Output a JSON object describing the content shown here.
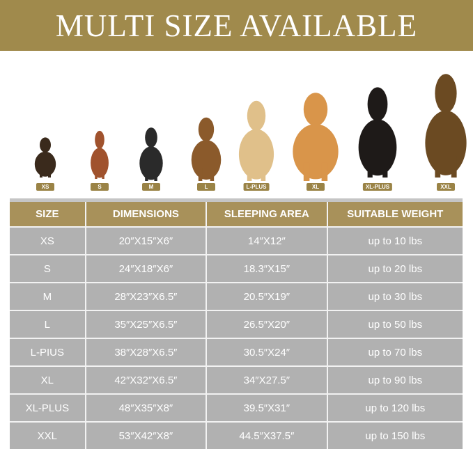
{
  "title": "MULTI SIZE AVAILABLE",
  "colors": {
    "banner": "#a08a4c",
    "header": "#a8915a",
    "rows": "#b1b1b1"
  },
  "dogs": [
    {
      "label": "XS",
      "breed_icon": "dachshund-photo"
    },
    {
      "label": "S",
      "breed_icon": "poodle-photo"
    },
    {
      "label": "M",
      "breed_icon": "french-bulldog-photo"
    },
    {
      "label": "L",
      "breed_icon": "beagle-photo"
    },
    {
      "label": "L-PLUS",
      "breed_icon": "golden-retriever-photo"
    },
    {
      "label": "XL",
      "breed_icon": "golden-retriever-photo"
    },
    {
      "label": "XL-PLUS",
      "breed_icon": "doberman-photo"
    },
    {
      "label": "XXL",
      "breed_icon": "german-shepherd-photo"
    }
  ],
  "table": {
    "headers": [
      "SIZE",
      "DIMENSIONS",
      "SLEEPING AREA",
      "SUITABLE WEIGHT"
    ],
    "rows": [
      [
        "XS",
        "20″X15″X6″",
        "14″X12″",
        "up to 10 lbs"
      ],
      [
        "S",
        "24″X18″X6″",
        "18.3″X15″",
        "up to 20 lbs"
      ],
      [
        "M",
        "28″X23″X6.5″",
        "20.5″X19″",
        "up to 30 lbs"
      ],
      [
        "L",
        "35″X25″X6.5″",
        "26.5″X20″",
        "up to 50 lbs"
      ],
      [
        "L-PIUS",
        "38″X28″X6.5″",
        "30.5″X24″",
        "up to 70 lbs"
      ],
      [
        "XL",
        "42″X32″X6.5″",
        "34″X27.5″",
        "up to 90 lbs"
      ],
      [
        "XL-PLUS",
        "48″X35″X8″",
        "39.5″X31″",
        "up to 120 lbs"
      ],
      [
        "XXL",
        "53″X42″X8″",
        "44.5″X37.5″",
        "up to 150 lbs"
      ]
    ]
  }
}
